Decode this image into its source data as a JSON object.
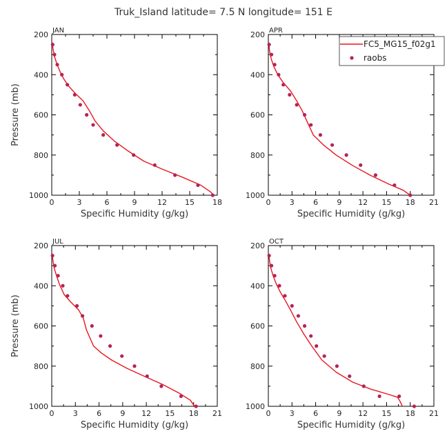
{
  "title": "Truk_Island   latitude= 7.5 N longitude= 151 E",
  "legend": {
    "model_label": "FC5_MG15_f02g1",
    "obs_label": "raobs",
    "model_color": "#e8151b",
    "obs_color": "#b5235a"
  },
  "chart_data": [
    {
      "type": "line",
      "panel_title": "JAN",
      "xlabel": "Specific Humidity (g/kg)",
      "ylabel": "Pressure (mb)",
      "xlim": [
        0,
        18
      ],
      "ylim": [
        1000,
        200
      ],
      "xticks": [
        0,
        3,
        6,
        9,
        12,
        15,
        18
      ],
      "yticks": [
        200,
        400,
        600,
        800,
        1000
      ],
      "series": [
        {
          "name": "FC5_MG15_f02g1",
          "kind": "line",
          "x": [
            0.05,
            0.15,
            0.3,
            0.55,
            0.9,
            1.3,
            1.8,
            2.5,
            3.4,
            4.1,
            4.7,
            5.6,
            6.8,
            8.3,
            10.0,
            12.0,
            14.2,
            16.2,
            17.3,
            17.6
          ],
          "y": [
            240,
            275,
            310,
            345,
            385,
            420,
            455,
            490,
            530,
            580,
            630,
            680,
            730,
            780,
            830,
            870,
            910,
            950,
            985,
            1000
          ]
        },
        {
          "name": "raobs",
          "kind": "scatter",
          "x": [
            0.1,
            0.3,
            0.6,
            1.1,
            1.7,
            2.5,
            3.1,
            3.8,
            4.5,
            5.6,
            7.1,
            8.9,
            11.2,
            13.4,
            15.9,
            17.5
          ],
          "y": [
            250,
            300,
            350,
            400,
            450,
            500,
            550,
            600,
            650,
            700,
            750,
            800,
            850,
            900,
            950,
            1000
          ]
        }
      ]
    },
    {
      "type": "line",
      "panel_title": "APR",
      "xlabel": "Specific Humidity (g/kg)",
      "ylabel": "",
      "xlim": [
        0,
        21
      ],
      "ylim": [
        1000,
        200
      ],
      "xticks": [
        0,
        3,
        6,
        9,
        12,
        15,
        18,
        21
      ],
      "yticks": [
        200,
        400,
        600,
        800,
        1000
      ],
      "series": [
        {
          "name": "FC5_MG15_f02g1",
          "kind": "line",
          "x": [
            0.05,
            0.15,
            0.35,
            0.7,
            1.2,
            1.9,
            2.8,
            3.6,
            4.3,
            5.0,
            5.7,
            7.0,
            8.6,
            10.6,
            12.9,
            15.3,
            17.1,
            18.0
          ],
          "y": [
            240,
            280,
            320,
            360,
            400,
            440,
            480,
            530,
            580,
            640,
            700,
            750,
            800,
            850,
            900,
            945,
            975,
            1000
          ]
        },
        {
          "name": "raobs",
          "kind": "scatter",
          "x": [
            0.1,
            0.4,
            0.8,
            1.3,
            1.9,
            2.7,
            3.6,
            4.6,
            5.4,
            6.6,
            8.1,
            9.9,
            11.7,
            13.6,
            16.0,
            18.0
          ],
          "y": [
            250,
            300,
            350,
            400,
            450,
            500,
            550,
            600,
            650,
            700,
            750,
            800,
            850,
            900,
            950,
            1000
          ]
        }
      ]
    },
    {
      "type": "line",
      "panel_title": "JUL",
      "xlabel": "Specific Humidity (g/kg)",
      "ylabel": "Pressure (mb)",
      "xlim": [
        0,
        21
      ],
      "ylim": [
        1000,
        200
      ],
      "xticks": [
        0,
        3,
        6,
        9,
        12,
        15,
        18,
        21
      ],
      "yticks": [
        200,
        400,
        600,
        800,
        1000
      ],
      "series": [
        {
          "name": "FC5_MG15_f02g1",
          "kind": "line",
          "x": [
            0.05,
            0.15,
            0.3,
            0.6,
            1.0,
            1.6,
            2.4,
            3.4,
            4.0,
            4.4,
            5.3,
            6.3,
            7.6,
            9.5,
            11.7,
            14.0,
            16.2,
            17.6,
            18.1
          ],
          "y": [
            240,
            275,
            310,
            350,
            395,
            445,
            480,
            520,
            560,
            620,
            700,
            735,
            770,
            810,
            850,
            890,
            935,
            970,
            1000
          ]
        },
        {
          "name": "raobs",
          "kind": "scatter",
          "x": [
            0.1,
            0.4,
            0.8,
            1.4,
            2.0,
            3.2,
            3.9,
            5.1,
            6.2,
            7.4,
            8.9,
            10.5,
            12.1,
            13.9,
            16.4,
            18.3
          ],
          "y": [
            250,
            300,
            350,
            400,
            450,
            500,
            550,
            600,
            650,
            700,
            750,
            800,
            850,
            900,
            950,
            1000
          ]
        }
      ]
    },
    {
      "type": "line",
      "panel_title": "OCT",
      "xlabel": "Specific Humidity (g/kg)",
      "ylabel": "",
      "xlim": [
        0,
        21
      ],
      "ylim": [
        1000,
        200
      ],
      "xticks": [
        0,
        3,
        6,
        9,
        12,
        15,
        18,
        21
      ],
      "yticks": [
        200,
        400,
        600,
        800,
        1000
      ],
      "series": [
        {
          "name": "FC5_MG15_f02g1",
          "kind": "line",
          "x": [
            0.05,
            0.15,
            0.3,
            0.6,
            1.0,
            1.5,
            2.1,
            2.8,
            3.6,
            4.5,
            5.5,
            6.8,
            8.6,
            10.7,
            13.0,
            15.2,
            16.4,
            16.7,
            17.0
          ],
          "y": [
            240,
            275,
            310,
            350,
            390,
            430,
            470,
            520,
            580,
            640,
            700,
            770,
            830,
            880,
            915,
            940,
            955,
            975,
            1000
          ]
        },
        {
          "name": "raobs",
          "kind": "scatter",
          "x": [
            0.1,
            0.4,
            0.8,
            1.4,
            2.1,
            3.0,
            3.8,
            4.6,
            5.4,
            6.1,
            7.1,
            8.7,
            10.3,
            12.1,
            14.1,
            16.6,
            18.5
          ],
          "y": [
            250,
            300,
            350,
            400,
            450,
            500,
            550,
            600,
            650,
            700,
            750,
            800,
            850,
            900,
            950,
            950,
            1000
          ]
        }
      ]
    }
  ]
}
